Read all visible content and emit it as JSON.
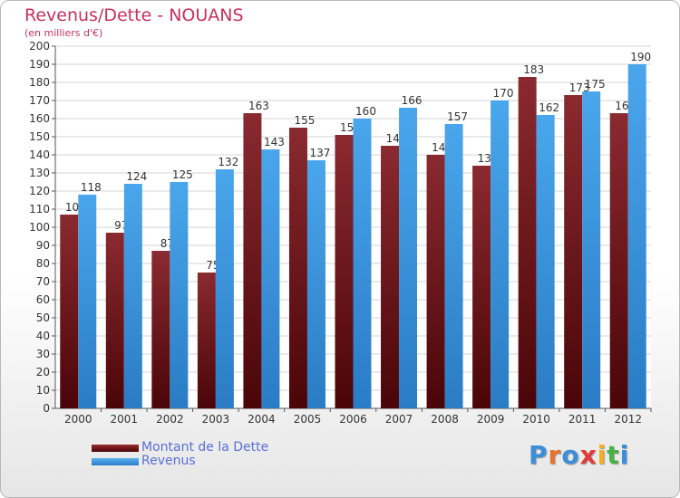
{
  "chart_data": {
    "type": "bar",
    "title": "Revenus/Dette - NOUANS",
    "subtitle": "(en milliers d'€)",
    "categories": [
      "2000",
      "2001",
      "2002",
      "2003",
      "2004",
      "2005",
      "2006",
      "2007",
      "2008",
      "2009",
      "2010",
      "2011",
      "2012"
    ],
    "series": [
      {
        "name": "Montant de la Dette",
        "color": "#7a1a1e",
        "values": [
          107,
          97,
          87,
          75,
          163,
          155,
          151,
          145,
          140,
          134,
          183,
          173,
          163
        ]
      },
      {
        "name": "Revenus",
        "color": "#3a96e0",
        "values": [
          118,
          124,
          125,
          132,
          143,
          137,
          160,
          166,
          157,
          170,
          162,
          175,
          190
        ]
      }
    ],
    "ylim": [
      0,
      200
    ],
    "ytick_step": 10,
    "grid": true,
    "legend_position": "bottom-left"
  },
  "logo": {
    "letters": [
      {
        "ch": "P",
        "color": "#3a8fd8"
      },
      {
        "ch": "r",
        "color": "#e8732a"
      },
      {
        "ch": "o",
        "color": "#3a8fd8"
      },
      {
        "ch": "x",
        "color": "#e23a3a"
      },
      {
        "ch": "i",
        "color": "#f0b020"
      },
      {
        "ch": "t",
        "color": "#48b048"
      },
      {
        "ch": "i",
        "color": "#3a8fd8"
      }
    ]
  }
}
